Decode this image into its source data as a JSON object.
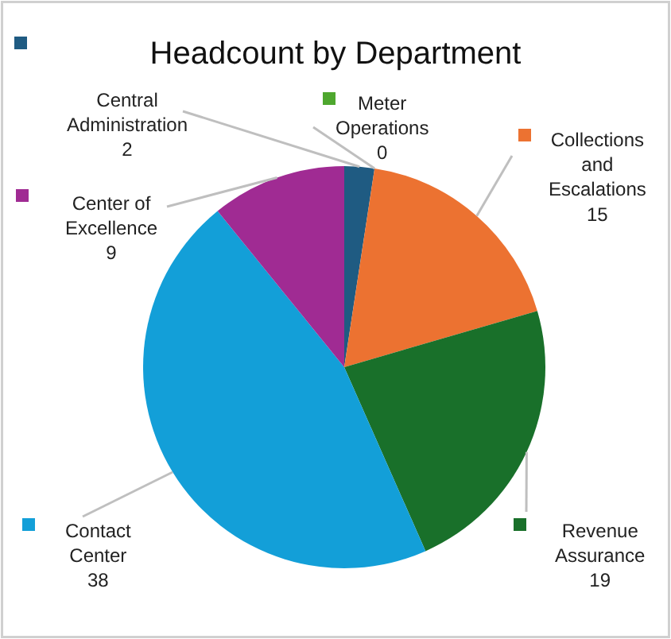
{
  "chart_data": {
    "type": "pie",
    "title": "Headcount by Department",
    "categories": [
      "Central Administration",
      "Meter Operations",
      "Collections and Escalations",
      "Revenue Assurance",
      "Contact Center",
      "Center of Excellence"
    ],
    "values": [
      2,
      0,
      15,
      19,
      38,
      9
    ],
    "colors": [
      "#1f5b82",
      "#4ea72e",
      "#ec7231",
      "#19702a",
      "#139fd8",
      "#a02b93"
    ],
    "value_labels": [
      "2",
      "0",
      "15",
      "19",
      "38",
      "9"
    ],
    "legend": "top left"
  }
}
